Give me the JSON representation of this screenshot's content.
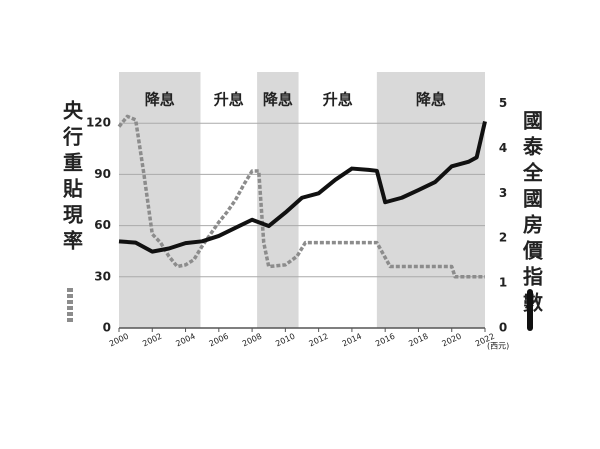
{
  "chart_data": {
    "type": "line",
    "x_unit": "(西元)",
    "xlim": [
      2000,
      2022
    ],
    "xticks": [
      2000,
      2002,
      2004,
      2006,
      2008,
      2010,
      2012,
      2014,
      2016,
      2018,
      2020,
      2022
    ],
    "ylim": [
      0,
      150
    ],
    "yticks": [
      0,
      30,
      60,
      90,
      120
    ],
    "y2lim": [
      0,
      5.7
    ],
    "y2ticks": [
      0,
      1,
      2,
      3,
      4,
      5
    ],
    "periods": [
      {
        "label": "降息",
        "start": 2000,
        "end": 2004.9,
        "color": "#d9d9d9"
      },
      {
        "label": "升息",
        "start": 2004.9,
        "end": 2008.3,
        "color": "#ffffff"
      },
      {
        "label": "降息",
        "start": 2008.3,
        "end": 2010.8,
        "color": "#d9d9d9"
      },
      {
        "label": "升息",
        "start": 2010.8,
        "end": 2015.5,
        "color": "#ffffff"
      },
      {
        "label": "降息",
        "start": 2015.5,
        "end": 2022,
        "color": "#d9d9d9"
      }
    ],
    "series": [
      {
        "name": "央行重貼現率",
        "color": "#8c8c8c",
        "dashed": true,
        "axis": "y",
        "x": [
          2000,
          2000.5,
          2001,
          2001.5,
          2002,
          2002.5,
          2003,
          2003.5,
          2004,
          2004.5,
          2005,
          2005.5,
          2006,
          2006.5,
          2007,
          2007.5,
          2008,
          2008.4,
          2008.7,
          2009,
          2010,
          2010.7,
          2011.2,
          2015.5,
          2016.3,
          2020,
          2020.2,
          2022
        ],
        "values": [
          118,
          124,
          122,
          90,
          55,
          50,
          42,
          36,
          37,
          40,
          48,
          55,
          62,
          68,
          75,
          84,
          92,
          92,
          50,
          36,
          37,
          42,
          50,
          50,
          36,
          36,
          30,
          30
        ]
      },
      {
        "name": "國泰全國房價指數",
        "color": "#111111",
        "dashed": false,
        "axis": "y2",
        "x": [
          2000,
          2001,
          2002,
          2003,
          2004,
          2005,
          2006,
          2007,
          2008,
          2009,
          2010,
          2011,
          2012,
          2013,
          2014,
          2015,
          2015.5,
          2016,
          2017,
          2018,
          2019,
          2020,
          2021,
          2021.5,
          2022
        ],
        "values": [
          1.93,
          1.9,
          1.7,
          1.77,
          1.89,
          1.93,
          2.05,
          2.23,
          2.41,
          2.27,
          2.57,
          2.9,
          3.0,
          3.3,
          3.55,
          3.52,
          3.5,
          2.8,
          2.9,
          3.07,
          3.25,
          3.6,
          3.7,
          3.8,
          4.6
        ]
      }
    ]
  }
}
